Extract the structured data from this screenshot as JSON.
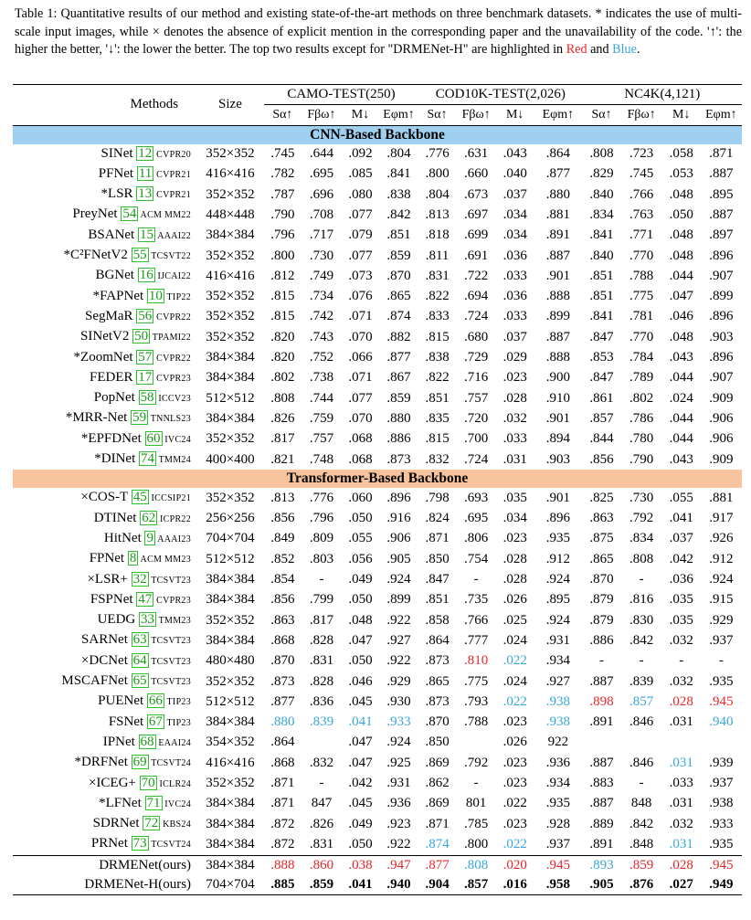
{
  "caption": {
    "prefix": "Table 1: Quantitative results of our method and existing state-of-the-art methods on three benchmark datasets. * indicates the use of multi-scale input images, while × denotes the absence of explicit mention in the corresponding paper and the unavailability of the code. '↑': the higher the better, '↓': the lower the better. The top two results except for \"DRMENet-H\" are highlighted in ",
    "red_word": "Red",
    "and_word": " and ",
    "blue_word": "Blue",
    "suffix": "."
  },
  "header": {
    "methods": "Methods",
    "size": "Size",
    "datasets": [
      "CAMO-TEST(250)",
      "COD10K-TEST(2,026)",
      "NC4K(4,121)"
    ],
    "metrics": [
      "Sα↑",
      "Fβω↑",
      "M↓",
      "Eφm↑",
      "Sα↑",
      "Fβω↑",
      "M↓",
      "Eφm↑",
      "Sα↑",
      "Fβω↑",
      "M↓",
      "Eφm↑"
    ]
  },
  "sections": [
    {
      "title": "CNN-Based Backbone",
      "rows": [
        {
          "name": "SINet",
          "cite": "12",
          "venue": "cvpr20",
          "size": "352×352",
          "v": [
            ".745",
            ".644",
            ".092",
            ".804",
            ".776",
            ".631",
            ".043",
            ".864",
            ".808",
            ".723",
            ".058",
            ".871"
          ]
        },
        {
          "name": "PFNet",
          "cite": "11",
          "venue": "cvpr21",
          "size": "416×416",
          "v": [
            ".782",
            ".695",
            ".085",
            ".841",
            ".800",
            ".660",
            ".040",
            ".877",
            ".829",
            ".745",
            ".053",
            ".887"
          ]
        },
        {
          "name": "*LSR",
          "cite": "13",
          "venue": "cvpr21",
          "size": "352×352",
          "v": [
            ".787",
            ".696",
            ".080",
            ".838",
            ".804",
            ".673",
            ".037",
            ".880",
            ".840",
            ".766",
            ".048",
            ".895"
          ]
        },
        {
          "name": "PreyNet",
          "cite": "54",
          "venue": "acm mm22",
          "size": "448×448",
          "v": [
            ".790",
            ".708",
            ".077",
            ".842",
            ".813",
            ".697",
            ".034",
            ".881",
            ".834",
            ".763",
            ".050",
            ".887"
          ]
        },
        {
          "name": "BSANet",
          "cite": "15",
          "venue": "aaai22",
          "size": "384×384",
          "v": [
            ".796",
            ".717",
            ".079",
            ".851",
            ".818",
            ".699",
            ".034",
            ".891",
            ".841",
            ".771",
            ".048",
            ".897"
          ]
        },
        {
          "name": "*C²FNetV2",
          "cite": "55",
          "venue": "tcsvt22",
          "size": "352×352",
          "v": [
            ".800",
            ".730",
            ".077",
            ".859",
            ".811",
            ".691",
            ".036",
            ".887",
            ".840",
            ".770",
            ".048",
            ".896"
          ]
        },
        {
          "name": "BGNet",
          "cite": "16",
          "venue": "ijcai22",
          "size": "416×416",
          "v": [
            ".812",
            ".749",
            ".073",
            ".870",
            ".831",
            ".722",
            ".033",
            ".901",
            ".851",
            ".788",
            ".044",
            ".907"
          ]
        },
        {
          "name": "*FAPNet",
          "cite": "10",
          "venue": "tip22",
          "size": "352×352",
          "v": [
            ".815",
            ".734",
            ".076",
            ".865",
            ".822",
            ".694",
            ".036",
            ".888",
            ".851",
            ".775",
            ".047",
            ".899"
          ]
        },
        {
          "name": "SegMaR",
          "cite": "56",
          "venue": "cvpr22",
          "size": "352×352",
          "v": [
            ".815",
            ".742",
            ".071",
            ".874",
            ".833",
            ".724",
            ".033",
            ".899",
            ".841",
            ".781",
            ".046",
            ".896"
          ]
        },
        {
          "name": "SINetV2",
          "cite": "50",
          "venue": "tpami22",
          "size": "352×352",
          "v": [
            ".820",
            ".743",
            ".070",
            ".882",
            ".815",
            ".680",
            ".037",
            ".887",
            ".847",
            ".770",
            ".048",
            ".903"
          ]
        },
        {
          "name": "*ZoomNet",
          "cite": "57",
          "venue": "cvpr22",
          "size": "384×384",
          "v": [
            ".820",
            ".752",
            ".066",
            ".877",
            ".838",
            ".729",
            ".029",
            ".888",
            ".853",
            ".784",
            ".043",
            ".896"
          ]
        },
        {
          "name": "FEDER",
          "cite": "17",
          "venue": "cvpr23",
          "size": "384×384",
          "v": [
            ".802",
            ".738",
            ".071",
            ".867",
            ".822",
            ".716",
            ".023",
            ".900",
            ".847",
            ".789",
            ".044",
            ".907"
          ]
        },
        {
          "name": "PopNet",
          "cite": "58",
          "venue": "iccv23",
          "size": "512×512",
          "v": [
            ".808",
            ".744",
            ".077",
            ".859",
            ".851",
            ".757",
            ".028",
            ".910",
            ".861",
            ".802",
            ".024",
            ".909"
          ]
        },
        {
          "name": "*MRR-Net",
          "cite": "59",
          "venue": "tnnls23",
          "size": "384×384",
          "v": [
            ".826",
            ".759",
            ".070",
            ".880",
            ".835",
            ".720",
            ".032",
            ".901",
            ".857",
            ".786",
            ".044",
            ".906"
          ]
        },
        {
          "name": "*EPFDNet",
          "cite": "60",
          "venue": "ivc24",
          "size": "352×352",
          "v": [
            ".817",
            ".757",
            ".068",
            ".886",
            ".815",
            ".700",
            ".033",
            ".894",
            ".844",
            ".780",
            ".044",
            ".906"
          ]
        },
        {
          "name": "*DINet",
          "cite": "74",
          "venue": "tmm24",
          "size": "400×400",
          "v": [
            ".821",
            ".748",
            ".068",
            ".873",
            ".832",
            ".724",
            ".031",
            ".903",
            ".856",
            ".790",
            ".043",
            ".909"
          ]
        }
      ]
    },
    {
      "title": "Transformer-Based Backbone",
      "rows": [
        {
          "name": "×COS-T",
          "cite": "45",
          "venue": "iccsip21",
          "size": "352×352",
          "v": [
            ".813",
            ".776",
            ".060",
            ".896",
            ".798",
            ".693",
            ".035",
            ".901",
            ".825",
            ".730",
            ".055",
            ".881"
          ]
        },
        {
          "name": "DTINet",
          "cite": "62",
          "venue": "icpr22",
          "size": "256×256",
          "v": [
            ".856",
            ".796",
            ".050",
            ".916",
            ".824",
            ".695",
            ".034",
            ".896",
            ".863",
            ".792",
            ".041",
            ".917"
          ]
        },
        {
          "name": "HitNet",
          "cite": "9",
          "venue": "aaai23",
          "size": "704×704",
          "v": [
            ".849",
            ".809",
            ".055",
            ".906",
            ".871",
            ".806",
            ".023",
            ".935",
            ".875",
            ".834",
            ".037",
            ".926"
          ]
        },
        {
          "name": "FPNet",
          "cite": "8",
          "venue": "acm mm23",
          "size": "512×512",
          "v": [
            ".852",
            ".803",
            ".056",
            ".905",
            ".850",
            ".754",
            ".028",
            ".912",
            ".865",
            ".808",
            ".042",
            ".912"
          ]
        },
        {
          "name": "×LSR+",
          "cite": "32",
          "venue": "tcsvt23",
          "size": "384×384",
          "v": [
            ".854",
            "-",
            ".049",
            ".924",
            ".847",
            "-",
            ".028",
            ".924",
            ".870",
            "-",
            ".036",
            ".924"
          ]
        },
        {
          "name": "FSPNet",
          "cite": "47",
          "venue": "cvpr23",
          "size": "384×384",
          "v": [
            ".856",
            ".799",
            ".050",
            ".899",
            ".851",
            ".735",
            ".026",
            ".895",
            ".879",
            ".816",
            ".035",
            ".915"
          ]
        },
        {
          "name": "UEDG",
          "cite": "33",
          "venue": "tmm23",
          "size": "352×352",
          "v": [
            ".863",
            ".817",
            ".048",
            ".922",
            ".858",
            ".766",
            ".025",
            ".924",
            ".879",
            ".830",
            ".035",
            ".929"
          ]
        },
        {
          "name": "SARNet",
          "cite": "63",
          "venue": "tcsvt23",
          "size": "384×384",
          "v": [
            ".868",
            ".828",
            ".047",
            ".927",
            ".864",
            ".777",
            ".024",
            ".931",
            ".886",
            ".842",
            ".032",
            ".937"
          ]
        },
        {
          "name": "×DCNet",
          "cite": "64",
          "venue": "tcsvt23",
          "size": "480×480",
          "v": [
            ".870",
            ".831",
            ".050",
            ".922",
            ".873",
            ".810",
            ".022",
            ".934",
            "-",
            "-",
            "-",
            "-"
          ],
          "c": [
            "",
            "",
            "",
            "",
            "",
            "r",
            "b",
            "",
            "",
            "",
            "",
            ""
          ]
        },
        {
          "name": "MSCAFNet",
          "cite": "65",
          "venue": "tcsvt23",
          "size": "352×352",
          "v": [
            ".873",
            ".828",
            ".046",
            ".929",
            ".865",
            ".775",
            ".024",
            ".927",
            ".887",
            ".839",
            ".032",
            ".935"
          ]
        },
        {
          "name": "PUENet",
          "cite": "66",
          "venue": "tip23",
          "size": "512×512",
          "v": [
            ".877",
            ".836",
            ".045",
            ".930",
            ".873",
            ".793",
            ".022",
            ".938",
            ".898",
            ".857",
            ".028",
            ".945"
          ],
          "c": [
            "",
            "",
            "",
            "",
            "",
            "",
            "b",
            "b",
            "r",
            "b",
            "r",
            "r"
          ]
        },
        {
          "name": "FSNet",
          "cite": "67",
          "venue": "tip23",
          "size": "384×384",
          "v": [
            ".880",
            ".839",
            ".041",
            ".933",
            ".870",
            ".788",
            ".023",
            ".938",
            ".891",
            ".846",
            ".031",
            ".940"
          ],
          "c": [
            "b",
            "b",
            "b",
            "b",
            "",
            "",
            "",
            "b",
            "",
            "",
            "",
            "b"
          ]
        },
        {
          "name": "IPNet",
          "cite": "68",
          "venue": "eaai24",
          "size": "354×352",
          "v": [
            ".864",
            "",
            ".047",
            ".924",
            ".850",
            "",
            ".026",
            "922",
            "",
            "",
            "",
            ""
          ]
        },
        {
          "name": "*DRFNet",
          "cite": "69",
          "venue": "tcsvt24",
          "size": "416×416",
          "v": [
            ".868",
            ".832",
            ".047",
            ".925",
            ".869",
            ".792",
            ".023",
            ".936",
            ".887",
            ".846",
            ".031",
            ".939"
          ],
          "c": [
            "",
            "",
            "",
            "",
            "",
            "",
            "",
            "",
            "",
            "",
            "b",
            ""
          ]
        },
        {
          "name": "×ICEG+",
          "cite": "70",
          "venue": "iclr24",
          "size": "352×352",
          "v": [
            ".871",
            "-",
            ".042",
            ".931",
            ".862",
            "-",
            ".023",
            ".934",
            ".883",
            "-",
            ".033",
            ".937"
          ]
        },
        {
          "name": "*LFNet",
          "cite": "71",
          "venue": "ivc24",
          "size": "384×384",
          "v": [
            ".871",
            "847",
            ".045",
            ".936",
            ".869",
            "801",
            ".022",
            ".935",
            ".887",
            "848",
            ".031",
            ".938"
          ]
        },
        {
          "name": "SDRNet",
          "cite": "72",
          "venue": "kbs24",
          "size": "384×384",
          "v": [
            ".872",
            ".826",
            ".049",
            ".923",
            ".871",
            ".785",
            ".023",
            ".928",
            ".889",
            ".842",
            ".032",
            ".933"
          ]
        },
        {
          "name": "PRNet",
          "cite": "73",
          "venue": "tcsvt24",
          "size": "384×384",
          "v": [
            ".872",
            ".831",
            ".050",
            ".922",
            ".874",
            ".800",
            ".022",
            ".937",
            ".891",
            ".848",
            ".031",
            ".935"
          ],
          "c": [
            "",
            "",
            "",
            "",
            "b",
            "",
            "b",
            "",
            "",
            "",
            "b",
            ""
          ]
        }
      ]
    }
  ],
  "ours": [
    {
      "name": "DRMENet(ours)",
      "size": "384×384",
      "v": [
        ".888",
        ".860",
        ".038",
        ".947",
        ".877",
        ".808",
        ".020",
        ".945",
        ".893",
        ".859",
        ".028",
        ".945"
      ],
      "c": [
        "r",
        "r",
        "r",
        "r",
        "r",
        "b",
        "r",
        "r",
        "b",
        "r",
        "r",
        "r"
      ],
      "bold": false
    },
    {
      "name": "DRMENet-H(ours)",
      "size": "704×704",
      "v": [
        ".885",
        ".859",
        ".041",
        ".940",
        ".904",
        ".857",
        ".016",
        ".958",
        ".905",
        ".876",
        ".027",
        ".949"
      ],
      "bold": true
    }
  ]
}
